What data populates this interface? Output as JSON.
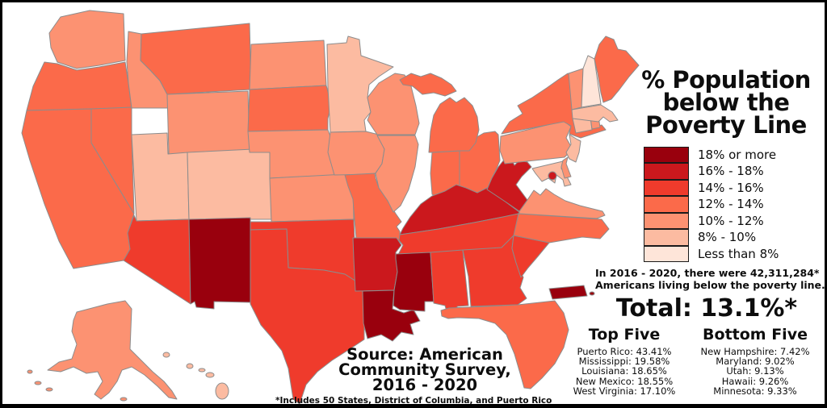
{
  "frame": {
    "background": "#ffffff",
    "border_color": "#000000"
  },
  "title": {
    "lines": [
      "% Population",
      "below the",
      "Poverty Line"
    ]
  },
  "legend": {
    "categories": [
      {
        "label": "18% or more",
        "color": "#99000d"
      },
      {
        "label": "16% - 18%",
        "color": "#cb181d"
      },
      {
        "label": "14% - 16%",
        "color": "#ef3b2c"
      },
      {
        "label": "12% - 14%",
        "color": "#fb6a4a"
      },
      {
        "label": "10% - 12%",
        "color": "#fc9272"
      },
      {
        "label": "8% - 10%",
        "color": "#fcbba1"
      },
      {
        "label": "Less than 8%",
        "color": "#fee5d9"
      }
    ]
  },
  "note": {
    "lines": [
      "In 2016 - 2020, there were 42,311,284*",
      "Americans living below the poverty line."
    ]
  },
  "total": {
    "label": "Total: 13.1%*"
  },
  "rankings": {
    "top": {
      "heading": "Top Five",
      "items": [
        {
          "state": "Puerto Rico",
          "value": "43.41%"
        },
        {
          "state": "Mississippi",
          "value": "19.58%"
        },
        {
          "state": "Louisiana",
          "value": "18.65%"
        },
        {
          "state": "New Mexico",
          "value": "18.55%"
        },
        {
          "state": "West Virginia",
          "value": "17.10%"
        }
      ]
    },
    "bottom": {
      "heading": "Bottom Five",
      "items": [
        {
          "state": "New Hampshire",
          "value": "7.42%"
        },
        {
          "state": "Maryland",
          "value": "9.02%"
        },
        {
          "state": "Utah",
          "value": "9.13%"
        },
        {
          "state": "Hawaii",
          "value": "9.26%"
        },
        {
          "state": "Minnesota",
          "value": "9.33%"
        }
      ]
    }
  },
  "source": {
    "lines": [
      "Source: American",
      "Community Survey,",
      "2016 - 2020"
    ],
    "footnote": "*Includes 50 States, District of Columbia, and Puerto Rico"
  },
  "map": {
    "stroke_color": "#8c8c8c",
    "states": [
      {
        "id": "WA",
        "name": "Washington",
        "category": "10% - 12%"
      },
      {
        "id": "OR",
        "name": "Oregon",
        "category": "12% - 14%"
      },
      {
        "id": "CA",
        "name": "California",
        "category": "12% - 14%"
      },
      {
        "id": "NV",
        "name": "Nevada",
        "category": "12% - 14%"
      },
      {
        "id": "ID",
        "name": "Idaho",
        "category": "10% - 12%"
      },
      {
        "id": "MT",
        "name": "Montana",
        "category": "12% - 14%"
      },
      {
        "id": "WY",
        "name": "Wyoming",
        "category": "10% - 12%"
      },
      {
        "id": "UT",
        "name": "Utah",
        "category": "8% - 10%"
      },
      {
        "id": "CO",
        "name": "Colorado",
        "category": "8% - 10%"
      },
      {
        "id": "AZ",
        "name": "Arizona",
        "category": "14% - 16%"
      },
      {
        "id": "NM",
        "name": "New Mexico",
        "category": "18% or more"
      },
      {
        "id": "ND",
        "name": "North Dakota",
        "category": "10% - 12%"
      },
      {
        "id": "SD",
        "name": "South Dakota",
        "category": "12% - 14%"
      },
      {
        "id": "NE",
        "name": "Nebraska",
        "category": "10% - 12%"
      },
      {
        "id": "KS",
        "name": "Kansas",
        "category": "10% - 12%"
      },
      {
        "id": "OK",
        "name": "Oklahoma",
        "category": "14% - 16%"
      },
      {
        "id": "TX",
        "name": "Texas",
        "category": "14% - 16%"
      },
      {
        "id": "MN",
        "name": "Minnesota",
        "category": "8% - 10%"
      },
      {
        "id": "IA",
        "name": "Iowa",
        "category": "10% - 12%"
      },
      {
        "id": "MO",
        "name": "Missouri",
        "category": "12% - 14%"
      },
      {
        "id": "AR",
        "name": "Arkansas",
        "category": "16% - 18%"
      },
      {
        "id": "LA",
        "name": "Louisiana",
        "category": "18% or more"
      },
      {
        "id": "WI",
        "name": "Wisconsin",
        "category": "10% - 12%"
      },
      {
        "id": "IL",
        "name": "Illinois",
        "category": "10% - 12%"
      },
      {
        "id": "IN",
        "name": "Indiana",
        "category": "12% - 14%"
      },
      {
        "id": "OH",
        "name": "Ohio",
        "category": "12% - 14%"
      },
      {
        "id": "MI",
        "name": "Michigan",
        "category": "12% - 14%"
      },
      {
        "id": "KY",
        "name": "Kentucky",
        "category": "16% - 18%"
      },
      {
        "id": "TN",
        "name": "Tennessee",
        "category": "14% - 16%"
      },
      {
        "id": "MS",
        "name": "Mississippi",
        "category": "18% or more"
      },
      {
        "id": "AL",
        "name": "Alabama",
        "category": "14% - 16%"
      },
      {
        "id": "GA",
        "name": "Georgia",
        "category": "14% - 16%"
      },
      {
        "id": "FL",
        "name": "Florida",
        "category": "12% - 14%"
      },
      {
        "id": "SC",
        "name": "South Carolina",
        "category": "14% - 16%"
      },
      {
        "id": "NC",
        "name": "North Carolina",
        "category": "12% - 14%"
      },
      {
        "id": "VA",
        "name": "Virginia",
        "category": "10% - 12%"
      },
      {
        "id": "WV",
        "name": "West Virginia",
        "category": "16% - 18%"
      },
      {
        "id": "MD",
        "name": "Maryland",
        "category": "8% - 10%"
      },
      {
        "id": "DE",
        "name": "Delaware",
        "category": "10% - 12%"
      },
      {
        "id": "DC",
        "name": "District of Columbia",
        "category": "16% - 18%"
      },
      {
        "id": "PA",
        "name": "Pennsylvania",
        "category": "10% - 12%"
      },
      {
        "id": "NJ",
        "name": "New Jersey",
        "category": "8% - 10%"
      },
      {
        "id": "NY",
        "name": "New York",
        "category": "12% - 14%"
      },
      {
        "id": "CT",
        "name": "Connecticut",
        "category": "8% - 10%"
      },
      {
        "id": "RI",
        "name": "Rhode Island",
        "category": "10% - 12%"
      },
      {
        "id": "MA",
        "name": "Massachusetts",
        "category": "8% - 10%"
      },
      {
        "id": "VT",
        "name": "Vermont",
        "category": "10% - 12%"
      },
      {
        "id": "NH",
        "name": "New Hampshire",
        "category": "Less than 8%"
      },
      {
        "id": "ME",
        "name": "Maine",
        "category": "12% - 14%"
      },
      {
        "id": "AK",
        "name": "Alaska",
        "category": "10% - 12%"
      },
      {
        "id": "HI",
        "name": "Hawaii",
        "category": "8% - 10%"
      },
      {
        "id": "PR",
        "name": "Puerto Rico",
        "category": "18% or more"
      }
    ]
  }
}
